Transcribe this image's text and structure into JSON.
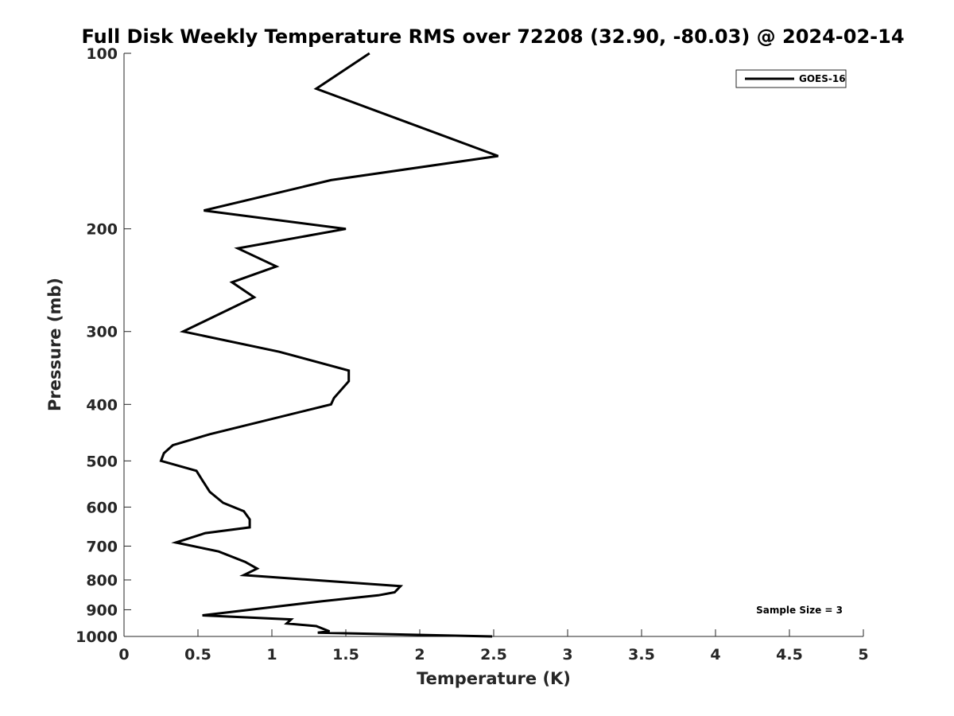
{
  "chart_data": {
    "type": "line",
    "title": "Full Disk Weekly Temperature RMS over 72208 (32.90, -80.03) @ 2024-02-14",
    "xlabel": "Temperature (K)",
    "ylabel": "Pressure (mb)",
    "xlim": [
      0,
      5
    ],
    "ylim": [
      1000,
      100
    ],
    "yscale": "log",
    "y_reversed": true,
    "grid": false,
    "legend_position": "top-right",
    "x_ticks": [
      "0",
      "0.5",
      "1",
      "1.5",
      "2",
      "2.5",
      "3",
      "3.5",
      "4",
      "4.5",
      "5"
    ],
    "x_tick_values": [
      0,
      0.5,
      1,
      1.5,
      2,
      2.5,
      3,
      3.5,
      4,
      4.5,
      5
    ],
    "y_ticks": [
      "100",
      "200",
      "300",
      "400",
      "500",
      "600",
      "700",
      "800",
      "900",
      "1000"
    ],
    "y_tick_values": [
      100,
      200,
      300,
      400,
      500,
      600,
      700,
      800,
      900,
      1000
    ],
    "series": [
      {
        "name": "GOES-16",
        "color": "#000000",
        "x": [
          1.66,
          1.3,
          2.53,
          1.4,
          0.54,
          1.5,
          0.77,
          1.03,
          0.73,
          0.88,
          0.4,
          1.05,
          1.52,
          1.52,
          1.42,
          1.4,
          0.58,
          0.33,
          0.27,
          0.25,
          0.49,
          0.53,
          0.58,
          0.67,
          0.81,
          0.85,
          0.85,
          0.55,
          0.35,
          0.64,
          0.82,
          0.9,
          0.81,
          1.87,
          1.83,
          1.72,
          1.34,
          0.53,
          1.13,
          1.1,
          1.3,
          1.39,
          1.31,
          2.49
        ],
        "y": [
          100,
          115,
          150,
          165,
          186,
          200,
          216,
          232,
          247,
          262,
          300,
          325,
          350,
          365,
          390,
          400,
          450,
          470,
          485,
          500,
          520,
          540,
          565,
          590,
          610,
          630,
          650,
          665,
          690,
          715,
          745,
          765,
          785,
          820,
          840,
          850,
          870,
          920,
          935,
          950,
          960,
          980,
          985,
          1000
        ]
      }
    ],
    "annotations": [
      "Sample Size = 3"
    ]
  }
}
